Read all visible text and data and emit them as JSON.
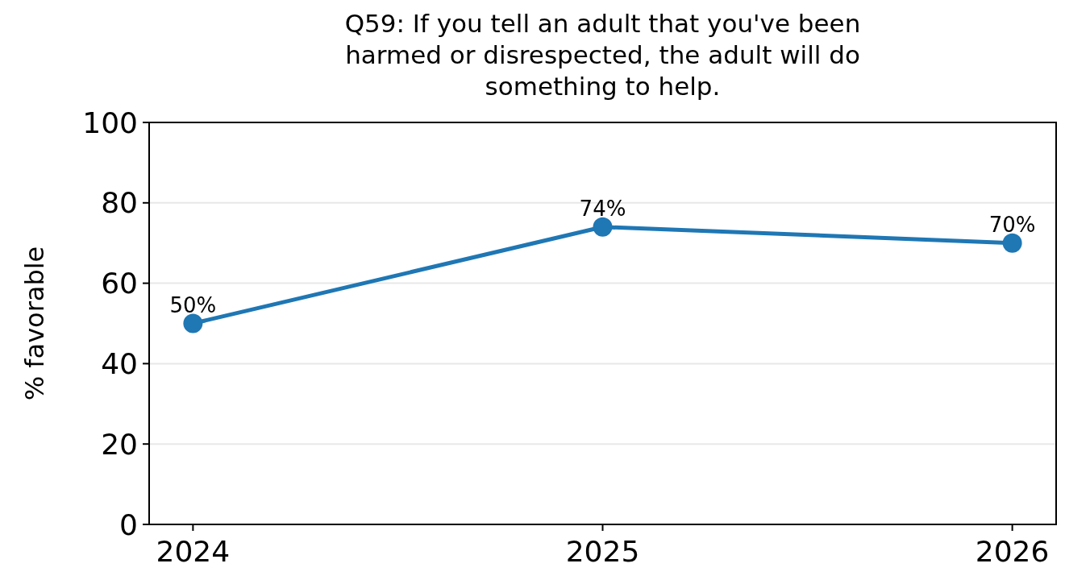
{
  "chart_data": {
    "type": "line",
    "title": "Q59: If you tell an adult that you've been harmed or disrespected, the adult will do something to help.",
    "ylabel": "% favorable",
    "categories": [
      "2024",
      "2025",
      "2026"
    ],
    "series": [
      {
        "color": "#1f77b4",
        "values": [
          50,
          74,
          70
        ],
        "value_labels": [
          "50%",
          "74%",
          "70%"
        ]
      }
    ],
    "ylim": [
      0,
      100
    ],
    "yticks": [
      0,
      20,
      40,
      60,
      80,
      100
    ],
    "grid": "y",
    "marker": "circle",
    "line_style": "solid"
  }
}
